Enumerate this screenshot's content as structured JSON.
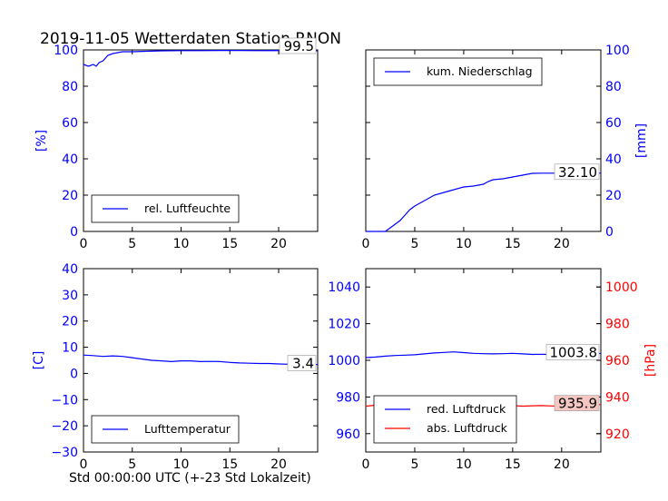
{
  "figure": {
    "title": "2019-11-05 Wetterdaten Station RNON",
    "xlabel": "Std 00:00:00 UTC (+-23 Std Lokalzeit)"
  },
  "chart_data": [
    {
      "type": "line",
      "id": "humidity",
      "ylabel": "[%]",
      "xlim": [
        0,
        24
      ],
      "ylim": [
        0,
        100
      ],
      "xticks": [
        "0",
        "5",
        "10",
        "15",
        "20"
      ],
      "yticks": [
        "0",
        "20",
        "40",
        "60",
        "80",
        "100"
      ],
      "legend": "lower-left",
      "annotation": "99.5",
      "series": [
        {
          "name": "rel. Luftfeuchte",
          "color": "#0000ff",
          "x": [
            0,
            0.5,
            1,
            1.3,
            1.6,
            2,
            2.5,
            3,
            3.5,
            4,
            5,
            6,
            8,
            10,
            12,
            14,
            16,
            18,
            20,
            22,
            24
          ],
          "y": [
            92,
            91,
            92,
            91,
            93,
            94,
            97,
            98,
            98.5,
            99,
            99,
            99.2,
            99.5,
            99.6,
            99.6,
            99.7,
            99.7,
            99.6,
            99.7,
            99.5,
            99.5
          ]
        }
      ]
    },
    {
      "type": "line",
      "id": "precipitation",
      "ylabel": "[mm]",
      "xlim": [
        0,
        24
      ],
      "ylim": [
        0,
        100
      ],
      "xticks": [
        "0",
        "5",
        "10",
        "15",
        "20"
      ],
      "yticks": [
        "0",
        "20",
        "40",
        "60",
        "80",
        "100"
      ],
      "legend": "top-left",
      "annotation": "32.10",
      "series": [
        {
          "name": "kum. Niederschlag",
          "color": "#0000ff",
          "x": [
            0,
            2,
            2.5,
            3,
            3.5,
            4,
            4.5,
            5,
            6,
            7,
            8,
            9,
            10,
            11,
            12,
            12.5,
            13,
            14,
            15,
            16,
            17,
            18,
            20,
            22,
            24
          ],
          "y": [
            0,
            0,
            2,
            4,
            6,
            9,
            12,
            14,
            17,
            20,
            21.5,
            23,
            24.5,
            25,
            26,
            27.5,
            28.5,
            29,
            30,
            31,
            32,
            32.1,
            32.1,
            32.1,
            32.1
          ]
        }
      ]
    },
    {
      "type": "line",
      "id": "temperature",
      "ylabel": "[C]",
      "xlim": [
        0,
        24
      ],
      "ylim": [
        -30,
        40
      ],
      "xticks": [
        "0",
        "5",
        "10",
        "15",
        "20"
      ],
      "yticks": [
        "−30",
        "−20",
        "−10",
        "0",
        "10",
        "20",
        "30",
        "40"
      ],
      "legend": "lower-left",
      "annotation": "3.4",
      "series": [
        {
          "name": "Lufttemperatur",
          "color": "#0000ff",
          "x": [
            0,
            1,
            2,
            3,
            4,
            5,
            6,
            7,
            8,
            9,
            10,
            11,
            12,
            13,
            14,
            15,
            16,
            17,
            18,
            19,
            20,
            21,
            22,
            23,
            24
          ],
          "y": [
            7,
            6.8,
            6.5,
            6.7,
            6.5,
            6,
            5.5,
            5,
            4.8,
            4.5,
            4.8,
            4.8,
            4.5,
            4.6,
            4.5,
            4.2,
            4,
            3.9,
            3.8,
            3.8,
            3.6,
            3.5,
            3.5,
            3.4,
            3.4
          ]
        }
      ]
    },
    {
      "type": "line",
      "id": "pressure",
      "ylabel": "[hPa]",
      "xlim": [
        0,
        24
      ],
      "ylim": [
        950,
        1050
      ],
      "y2lim": [
        910,
        1010
      ],
      "xticks": [
        "0",
        "5",
        "10",
        "15",
        "20"
      ],
      "yticks": [
        "960",
        "980",
        "1000",
        "1020",
        "1040"
      ],
      "y2ticks": [
        "920",
        "940",
        "960",
        "980",
        "1000"
      ],
      "legend": "lower-left",
      "annotations": [
        "1003.8",
        "935.9"
      ],
      "series": [
        {
          "name": "red. Luftdruck",
          "color": "#0000ff",
          "axis": "left",
          "x": [
            0,
            1,
            2,
            3,
            4,
            5,
            6,
            7,
            8,
            9,
            10,
            11,
            12,
            13,
            14,
            15,
            16,
            17,
            18,
            19,
            20,
            21,
            22,
            23,
            24
          ],
          "y": [
            1001.5,
            1001.8,
            1002.3,
            1002.6,
            1002.8,
            1003,
            1003.5,
            1004,
            1004.3,
            1004.6,
            1004.2,
            1003.8,
            1003.6,
            1003.5,
            1003.6,
            1003.8,
            1003.5,
            1003.2,
            1003.3,
            1003.2,
            1003,
            1002.8,
            1003,
            1003.5,
            1003.8
          ]
        },
        {
          "name": "abs. Luftdruck",
          "color": "#ff0000",
          "axis": "right",
          "x": [
            0,
            1,
            2,
            3,
            4,
            5,
            6,
            7,
            8,
            9,
            10,
            11,
            12,
            13,
            14,
            15,
            16,
            17,
            18,
            19,
            20,
            21,
            22,
            23,
            24
          ],
          "y": [
            935,
            935.5,
            935.8,
            936,
            935.8,
            935.5,
            935.8,
            936.5,
            936.8,
            937,
            936.5,
            936.2,
            935.8,
            935.5,
            935.5,
            935.3,
            935,
            935.2,
            935.3,
            935.1,
            935,
            935.2,
            935.5,
            935.7,
            935.9
          ]
        }
      ]
    }
  ]
}
